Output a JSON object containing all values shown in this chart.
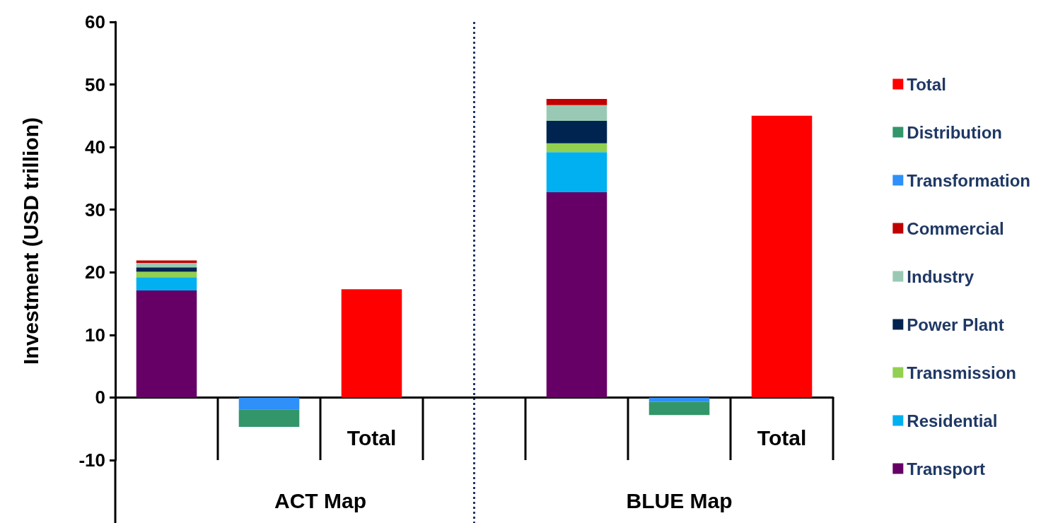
{
  "chart_data": {
    "type": "bar",
    "stacked": true,
    "ylabel": "Investment (USD trillion)",
    "categories": [
      null,
      null,
      "Total",
      null,
      null,
      null,
      "Total"
    ],
    "series": [
      {
        "name": "Transport",
        "color": "#660066",
        "values": [
          17.1,
          null,
          null,
          null,
          32.8,
          null,
          null
        ]
      },
      {
        "name": "Residential",
        "color": "#00b0f0",
        "values": [
          2.1,
          null,
          null,
          null,
          6.4,
          null,
          null
        ]
      },
      {
        "name": "Transmission",
        "color": "#92d050",
        "values": [
          0.9,
          null,
          null,
          null,
          1.4,
          null,
          null
        ]
      },
      {
        "name": "Power Plant",
        "color": "#002450",
        "values": [
          0.7,
          null,
          null,
          null,
          3.6,
          null,
          null
        ]
      },
      {
        "name": "Industry",
        "color": "#99c9b4",
        "values": [
          0.7,
          null,
          null,
          null,
          2.5,
          null,
          null
        ]
      },
      {
        "name": "Commercial",
        "color": "#c00000",
        "values": [
          0.4,
          null,
          null,
          null,
          1.0,
          null,
          null
        ]
      },
      {
        "name": "Transformation",
        "color": "#2e90f8",
        "values": [
          null,
          -1.9,
          null,
          null,
          null,
          -0.7,
          null
        ]
      },
      {
        "name": "Distribution",
        "color": "#33966a",
        "values": [
          null,
          -2.8,
          null,
          null,
          null,
          -2.1,
          null
        ]
      },
      {
        "name": "Total",
        "color": "#ff0000",
        "values": [
          null,
          null,
          17.3,
          null,
          null,
          null,
          45.0
        ]
      }
    ],
    "ylim": [
      -10,
      60
    ],
    "yticks": [
      -10,
      0,
      10,
      20,
      30,
      40,
      50,
      60
    ],
    "annotations": [
      "ACT Map",
      "BLUE Map"
    ],
    "legend": "right",
    "grid": false
  }
}
